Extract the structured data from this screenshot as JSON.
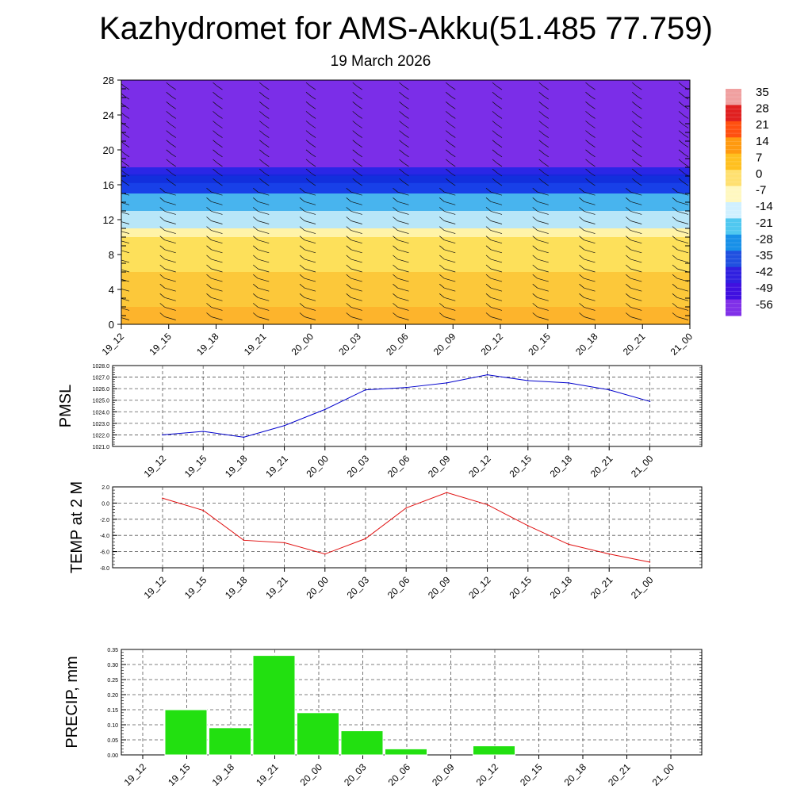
{
  "title": "Kazhydromet for AMS-Akku(51.485 77.759)",
  "subtitle": "19 March 2026",
  "colors": {
    "pmsl_line": "#0000cc",
    "temp_line": "#e01010",
    "precip_bar": "#22e010",
    "grid": "#555555"
  },
  "chart_data": [
    {
      "type": "heatmap",
      "title": "Kazhydromet for AMS-Akku(51.485 77.759)",
      "subtitle": "19 March 2026",
      "x_ticks": [
        "19_12",
        "19_15",
        "19_18",
        "19_21",
        "20_00",
        "20_03",
        "20_06",
        "20_09",
        "20_12",
        "20_15",
        "20_18",
        "20_21",
        "21_00"
      ],
      "y_ticks": [
        0,
        4,
        8,
        12,
        16,
        20,
        24,
        28
      ],
      "ylim": [
        0,
        28
      ],
      "colorbar_ticks": [
        35,
        28,
        21,
        14,
        7,
        0,
        -7,
        -14,
        -21,
        -28,
        -35,
        -42,
        -49,
        -56
      ],
      "colorbar_colors": [
        "#f0a0a0",
        "#e02020",
        "#ff5010",
        "#ff9a10",
        "#ffc020",
        "#ffe070",
        "#fff8c0",
        "#d0f0ff",
        "#50c8f0",
        "#1890e8",
        "#2050e0",
        "#3020e0",
        "#4010e0",
        "#8030e8"
      ],
      "description_bands": [
        {
          "from": 0,
          "to": 2,
          "color": "#fdb42c"
        },
        {
          "from": 2,
          "to": 6,
          "color": "#fcc83a"
        },
        {
          "from": 6,
          "to": 10,
          "color": "#fde05a"
        },
        {
          "from": 10,
          "to": 11,
          "color": "#fff3a8"
        },
        {
          "from": 11,
          "to": 13,
          "color": "#b8e6f8"
        },
        {
          "from": 13,
          "to": 15,
          "color": "#48b4ee"
        },
        {
          "from": 15,
          "to": 17,
          "color": "#1840e8"
        },
        {
          "from": 17,
          "to": 18,
          "color": "#2a26e6"
        },
        {
          "from": 18,
          "to": 28,
          "color": "#7b2ee8"
        }
      ]
    },
    {
      "type": "line",
      "ylabel": "PMSL",
      "categories": [
        "19_12",
        "19_15",
        "19_18",
        "19_21",
        "20_00",
        "20_03",
        "20_06",
        "20_09",
        "20_12",
        "20_15",
        "20_18",
        "20_21",
        "21_00"
      ],
      "values": [
        1022.0,
        1022.3,
        1021.8,
        1022.8,
        1024.2,
        1025.9,
        1026.1,
        1026.5,
        1027.2,
        1026.7,
        1026.5,
        1025.9,
        1024.9
      ],
      "ylim": [
        1021.0,
        1028.0
      ],
      "y_ticks": [
        "1028.0",
        "1027.0",
        "1026.0",
        "1025.0",
        "1024.0",
        "1023.0",
        "1022.0",
        "1021.0"
      ],
      "grid": true
    },
    {
      "type": "line",
      "ylabel": "TEMP at 2 M",
      "categories": [
        "19_12",
        "19_15",
        "19_18",
        "19_21",
        "20_00",
        "20_03",
        "20_06",
        "20_09",
        "20_12",
        "20_15",
        "20_18",
        "20_21",
        "21_00"
      ],
      "values": [
        0.6,
        -0.9,
        -4.6,
        -4.9,
        -6.3,
        -4.4,
        -0.6,
        1.3,
        -0.2,
        -2.8,
        -5.1,
        -6.3,
        -7.3
      ],
      "ylim": [
        -8.0,
        2.0
      ],
      "y_ticks": [
        "2.0",
        "0.0",
        "-2.0",
        "-4.0",
        "-6.0",
        "-8.0"
      ],
      "grid": true
    },
    {
      "type": "bar",
      "ylabel": "PRECIP, mm",
      "categories": [
        "19_12",
        "19_15",
        "19_18",
        "19_21",
        "20_00",
        "20_03",
        "20_06",
        "20_09",
        "20_12",
        "20_15",
        "20_18",
        "20_21",
        "21_00"
      ],
      "values": [
        0.0,
        0.15,
        0.09,
        0.33,
        0.14,
        0.08,
        0.02,
        0.0,
        0.03,
        0.0,
        0.0,
        0.0,
        0.0
      ],
      "ylim": [
        0.0,
        0.35
      ],
      "y_ticks": [
        "0.35",
        "0.30",
        "0.25",
        "0.20",
        "0.15",
        "0.10",
        "0.05",
        "0.00"
      ],
      "grid": true
    }
  ]
}
